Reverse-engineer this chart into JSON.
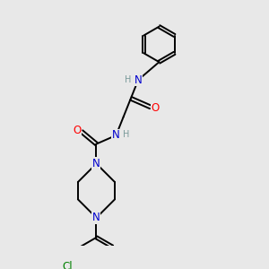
{
  "background_color": "#e8e8e8",
  "bond_color": "#000000",
  "atom_colors": {
    "N": "#0000cd",
    "O": "#ff0000",
    "Cl": "#008000",
    "H": "#7a9a9a"
  },
  "font_size_atoms": 8.5,
  "font_size_h": 7.0,
  "figsize": [
    3.0,
    3.0
  ],
  "dpi": 100,
  "lw": 1.4
}
